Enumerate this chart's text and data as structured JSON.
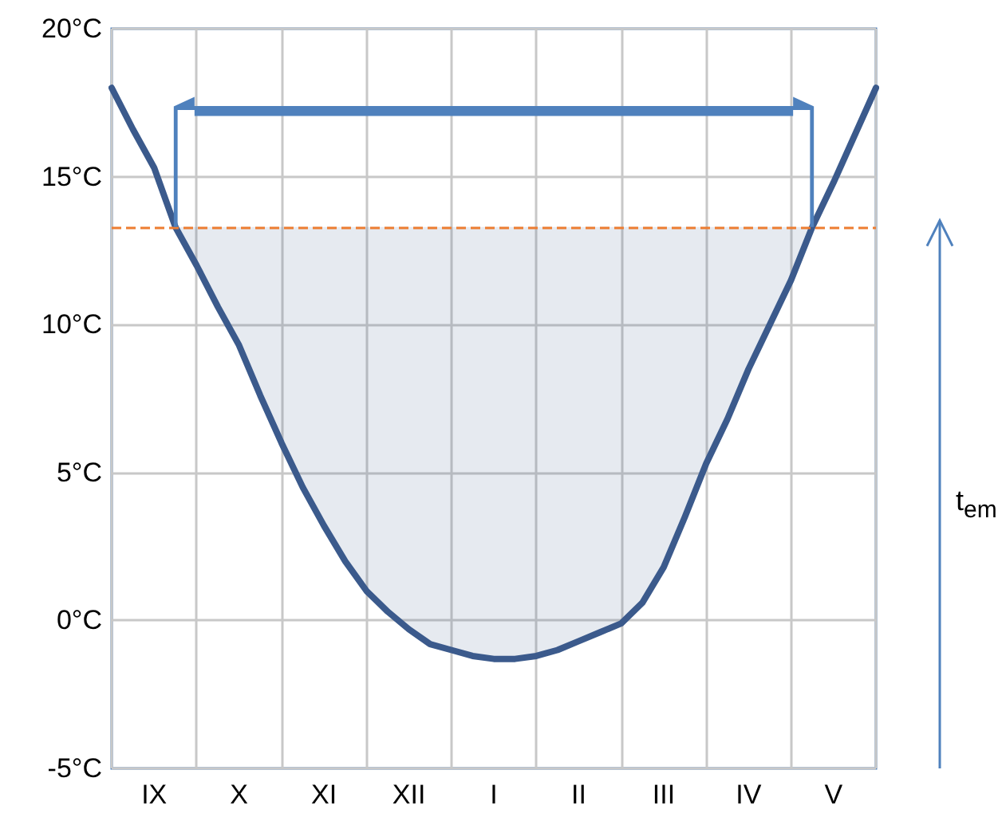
{
  "chart_data": {
    "type": "line",
    "categories": [
      null,
      null,
      "IX",
      null,
      null,
      null,
      "X",
      null,
      null,
      null,
      "XI",
      null,
      null,
      null,
      "XII",
      null,
      null,
      null,
      "I",
      null,
      null,
      null,
      "II",
      null,
      null,
      null,
      "III",
      null,
      null,
      null,
      "IV",
      null,
      null,
      null,
      "V",
      null,
      null
    ],
    "ylim": [
      -5,
      20
    ],
    "yticks": [
      {
        "value": -5,
        "label": "-5°C"
      },
      {
        "value": 0,
        "label": "0°C"
      },
      {
        "value": 5,
        "label": "5°C"
      },
      {
        "value": 10,
        "label": "10°C"
      },
      {
        "value": 15,
        "label": "15°C"
      },
      {
        "value": 20,
        "label": "20°C"
      }
    ],
    "series": [
      {
        "color": "#3b5a8c",
        "values": [
          18,
          16.6,
          15.3,
          13.3,
          12,
          10.6,
          9.3,
          7.6,
          6,
          4.5,
          3.2,
          2,
          1,
          0.3,
          -0.3,
          -0.8,
          -1,
          -1.2,
          -1.3,
          -1.3,
          -1.2,
          -1,
          -0.7,
          -0.4,
          -0.1,
          0.6,
          1.8,
          3.5,
          5.3,
          6.8,
          8.5,
          10,
          11.5,
          13.3,
          14.8,
          16.4,
          18
        ],
        "lower": [
          null,
          null,
          null,
          13.3,
          12,
          10.6,
          9.3,
          7.6,
          6,
          4.5,
          3.2,
          2,
          1,
          0.3,
          -0.3,
          -0.8,
          -1,
          -1.2,
          -1.3,
          -1.3,
          -1.2,
          -1,
          -0.7,
          -0.4,
          -0.1,
          0.6,
          1.8,
          3.5,
          5.3,
          6.8,
          8.5,
          10,
          11.5,
          13.3,
          null,
          null,
          null
        ],
        "upper": [
          null,
          null,
          null,
          13.3,
          13.3,
          13.3,
          13.3,
          13.3,
          13.3,
          13.3,
          13.3,
          13.3,
          13.3,
          13.3,
          13.3,
          13.3,
          13.3,
          13.3,
          13.3,
          13.3,
          13.3,
          13.3,
          13.3,
          13.3,
          13.3,
          13.3,
          13.3,
          13.3,
          13.3,
          13.3,
          13.3,
          13.3,
          13.3,
          13.3,
          null,
          null,
          null
        ]
      }
    ],
    "ref_lines": [
      {
        "axis": "y",
        "value": 13.3,
        "color": "#ed7d31",
        "line_style": "dashed"
      }
    ],
    "annotations": [
      "t$_{em}$"
    ],
    "grid": true,
    "marker": "none",
    "line_style": "solid"
  }
}
